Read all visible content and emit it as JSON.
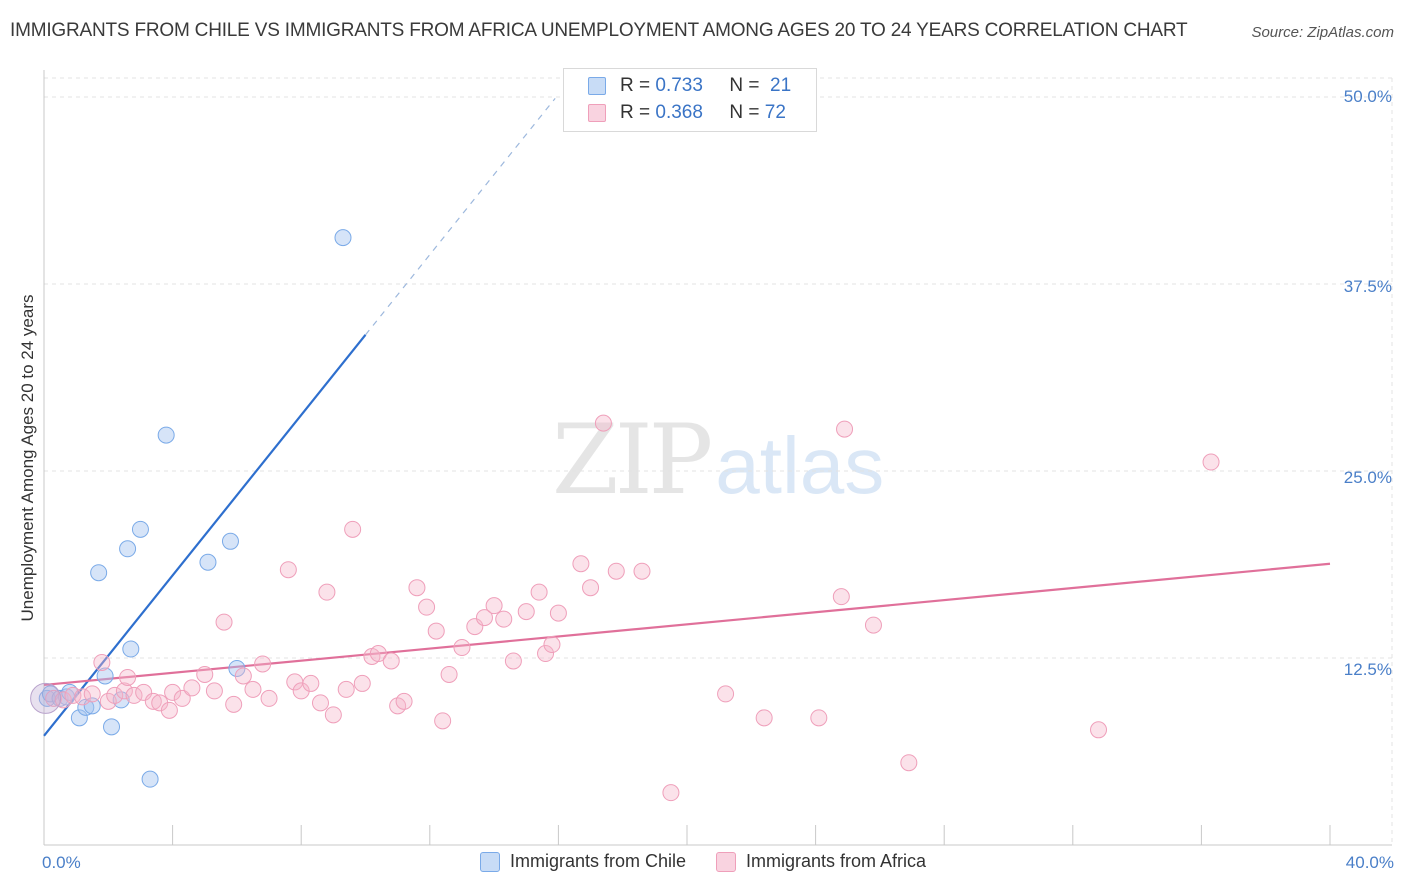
{
  "chart_data": {
    "type": "scatter",
    "title": "IMMIGRANTS FROM CHILE VS IMMIGRANTS FROM AFRICA UNEMPLOYMENT AMONG AGES 20 TO 24 YEARS CORRELATION CHART",
    "source": "Source: ZipAtlas.com",
    "ylabel": "Unemployment Among Ages 20 to 24 years",
    "xlim": [
      0,
      40
    ],
    "ylim": [
      0,
      50
    ],
    "x_tick_labels": [
      "0.0%",
      "40.0%"
    ],
    "y_ticks": [
      {
        "value": 12.5,
        "label": "12.5%"
      },
      {
        "value": 25.0,
        "label": "25.0%"
      },
      {
        "value": 37.5,
        "label": "37.5%"
      },
      {
        "value": 50.0,
        "label": "50.0%"
      }
    ],
    "grid": true,
    "watermark": {
      "zip": "ZIP",
      "atlas": "atlas"
    },
    "series": [
      {
        "name": "Immigrants from Chile",
        "color": "#7aaae8",
        "fill": "rgba(164,196,240,0.45)",
        "line_color": "#2e6fce",
        "R": "0.733",
        "N": "21",
        "trend": {
          "x0": 0.0,
          "y0": 7.3,
          "x1": 10.0,
          "y1": 34.1,
          "dash_to_x": 15.9
        },
        "points": [
          [
            0.1,
            9.8
          ],
          [
            0.2,
            10.1
          ],
          [
            0.5,
            9.8
          ],
          [
            0.7,
            9.9
          ],
          [
            0.8,
            10.2
          ],
          [
            1.1,
            8.5
          ],
          [
            1.3,
            9.2
          ],
          [
            1.5,
            9.3
          ],
          [
            1.7,
            18.2
          ],
          [
            1.9,
            11.3
          ],
          [
            2.1,
            7.9
          ],
          [
            2.4,
            9.7
          ],
          [
            2.6,
            19.8
          ],
          [
            2.7,
            13.1
          ],
          [
            3.0,
            21.1
          ],
          [
            3.3,
            4.4
          ],
          [
            3.8,
            27.4
          ],
          [
            5.1,
            18.9
          ],
          [
            5.8,
            20.3
          ],
          [
            6.0,
            11.8
          ],
          [
            9.3,
            40.6
          ]
        ]
      },
      {
        "name": "Immigrants from Africa",
        "color": "#ef9fba",
        "fill": "rgba(245,182,203,0.40)",
        "line_color": "#e0709a",
        "R": "0.368",
        "N": "72",
        "trend": {
          "x0": 0.0,
          "y0": 10.7,
          "x1": 40.0,
          "y1": 18.8
        },
        "points": [
          [
            0.3,
            9.8
          ],
          [
            0.6,
            9.7
          ],
          [
            0.9,
            10.0
          ],
          [
            1.2,
            9.9
          ],
          [
            1.5,
            10.1
          ],
          [
            1.8,
            12.2
          ],
          [
            2.0,
            9.6
          ],
          [
            2.2,
            10.0
          ],
          [
            2.5,
            10.3
          ],
          [
            2.6,
            11.2
          ],
          [
            2.8,
            10.0
          ],
          [
            3.1,
            10.2
          ],
          [
            3.4,
            9.6
          ],
          [
            3.6,
            9.5
          ],
          [
            3.9,
            9.0
          ],
          [
            4.0,
            10.2
          ],
          [
            4.3,
            9.8
          ],
          [
            4.6,
            10.5
          ],
          [
            5.0,
            11.4
          ],
          [
            5.3,
            10.3
          ],
          [
            5.6,
            14.9
          ],
          [
            5.9,
            9.4
          ],
          [
            6.2,
            11.3
          ],
          [
            6.5,
            10.4
          ],
          [
            6.8,
            12.1
          ],
          [
            7.0,
            9.8
          ],
          [
            7.6,
            18.4
          ],
          [
            7.8,
            10.9
          ],
          [
            8.0,
            10.3
          ],
          [
            8.3,
            10.8
          ],
          [
            8.6,
            9.5
          ],
          [
            8.8,
            16.9
          ],
          [
            9.0,
            8.7
          ],
          [
            9.4,
            10.4
          ],
          [
            9.6,
            21.1
          ],
          [
            9.9,
            10.8
          ],
          [
            10.2,
            12.6
          ],
          [
            10.4,
            12.8
          ],
          [
            10.8,
            12.3
          ],
          [
            11.0,
            9.3
          ],
          [
            11.2,
            9.6
          ],
          [
            11.6,
            17.2
          ],
          [
            11.9,
            15.9
          ],
          [
            12.2,
            14.3
          ],
          [
            12.4,
            8.3
          ],
          [
            12.6,
            11.4
          ],
          [
            13.0,
            13.2
          ],
          [
            13.4,
            14.6
          ],
          [
            13.7,
            15.2
          ],
          [
            14.0,
            16.0
          ],
          [
            14.3,
            15.1
          ],
          [
            14.6,
            12.3
          ],
          [
            15.0,
            15.6
          ],
          [
            15.4,
            16.9
          ],
          [
            15.6,
            12.8
          ],
          [
            15.8,
            13.4
          ],
          [
            16.0,
            15.5
          ],
          [
            16.7,
            18.8
          ],
          [
            17.0,
            17.2
          ],
          [
            17.4,
            28.2
          ],
          [
            17.8,
            18.3
          ],
          [
            18.6,
            18.3
          ],
          [
            19.5,
            3.5
          ],
          [
            21.2,
            10.1
          ],
          [
            22.4,
            8.5
          ],
          [
            24.1,
            8.5
          ],
          [
            24.8,
            16.6
          ],
          [
            24.9,
            27.8
          ],
          [
            25.8,
            14.7
          ],
          [
            26.9,
            5.5
          ],
          [
            32.8,
            7.7
          ],
          [
            36.3,
            25.6
          ]
        ]
      }
    ]
  }
}
